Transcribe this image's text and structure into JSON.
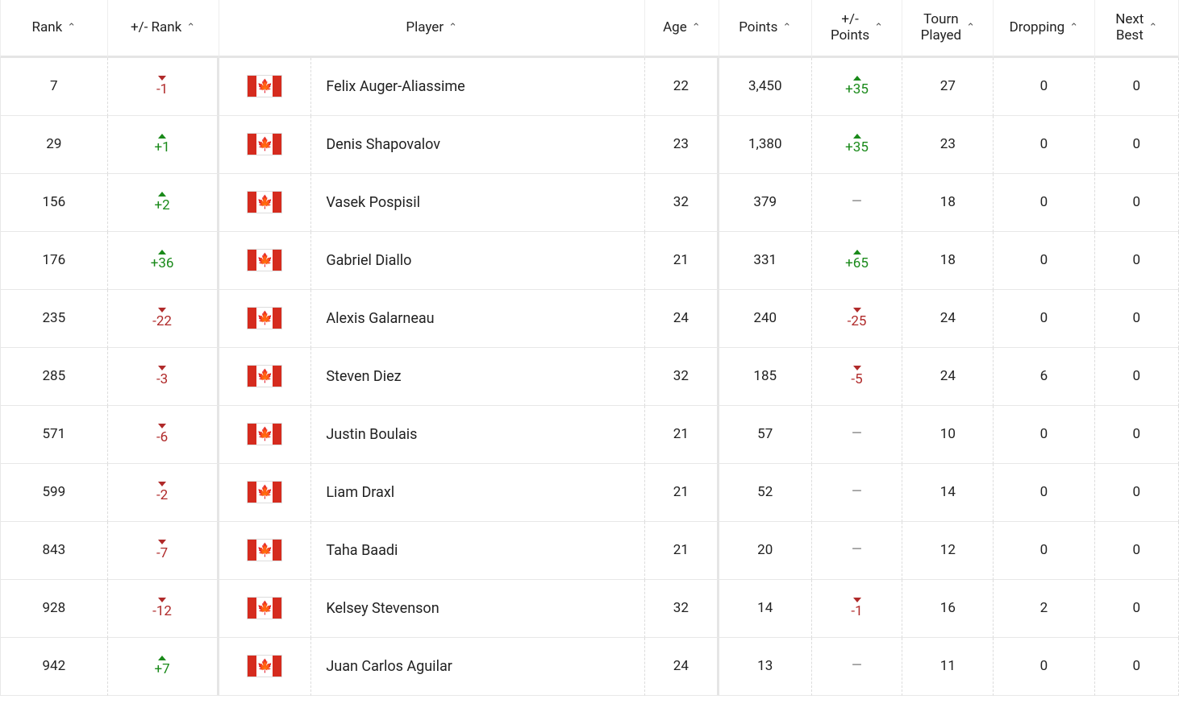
{
  "columns": {
    "rank": "Rank",
    "rank_delta": "+/- Rank",
    "player": "Player",
    "age": "Age",
    "points": "Points",
    "points_delta": "+/-\nPoints",
    "tourn_played": "Tourn\nPlayed",
    "dropping": "Dropping",
    "next_best": "Next\nBest"
  },
  "sort_indicator": "^",
  "flag_country": "ca",
  "colors": {
    "up": "#1a8a1a",
    "down": "#b02a2a",
    "flat": "#999999",
    "row_border": "#e8e8e8",
    "dashed_border": "#dcdcdc",
    "header_border": "#e5e5e5"
  },
  "rows": [
    {
      "rank": "7",
      "rank_delta": {
        "dir": "down",
        "val": "-1"
      },
      "player": "Felix Auger-Aliassime",
      "age": "22",
      "points": "3,450",
      "points_delta": {
        "dir": "up",
        "val": "+35"
      },
      "tourn_played": "27",
      "dropping": "0",
      "next_best": "0"
    },
    {
      "rank": "29",
      "rank_delta": {
        "dir": "up",
        "val": "+1"
      },
      "player": "Denis Shapovalov",
      "age": "23",
      "points": "1,380",
      "points_delta": {
        "dir": "up",
        "val": "+35"
      },
      "tourn_played": "23",
      "dropping": "0",
      "next_best": "0"
    },
    {
      "rank": "156",
      "rank_delta": {
        "dir": "up",
        "val": "+2"
      },
      "player": "Vasek Pospisil",
      "age": "32",
      "points": "379",
      "points_delta": {
        "dir": "flat",
        "val": ""
      },
      "tourn_played": "18",
      "dropping": "0",
      "next_best": "0"
    },
    {
      "rank": "176",
      "rank_delta": {
        "dir": "up",
        "val": "+36"
      },
      "player": "Gabriel Diallo",
      "age": "21",
      "points": "331",
      "points_delta": {
        "dir": "up",
        "val": "+65"
      },
      "tourn_played": "18",
      "dropping": "0",
      "next_best": "0"
    },
    {
      "rank": "235",
      "rank_delta": {
        "dir": "down",
        "val": "-22"
      },
      "player": "Alexis Galarneau",
      "age": "24",
      "points": "240",
      "points_delta": {
        "dir": "down",
        "val": "-25"
      },
      "tourn_played": "24",
      "dropping": "0",
      "next_best": "0"
    },
    {
      "rank": "285",
      "rank_delta": {
        "dir": "down",
        "val": "-3"
      },
      "player": "Steven Diez",
      "age": "32",
      "points": "185",
      "points_delta": {
        "dir": "down",
        "val": "-5"
      },
      "tourn_played": "24",
      "dropping": "6",
      "next_best": "0"
    },
    {
      "rank": "571",
      "rank_delta": {
        "dir": "down",
        "val": "-6"
      },
      "player": "Justin Boulais",
      "age": "21",
      "points": "57",
      "points_delta": {
        "dir": "flat",
        "val": ""
      },
      "tourn_played": "10",
      "dropping": "0",
      "next_best": "0"
    },
    {
      "rank": "599",
      "rank_delta": {
        "dir": "down",
        "val": "-2"
      },
      "player": "Liam Draxl",
      "age": "21",
      "points": "52",
      "points_delta": {
        "dir": "flat",
        "val": ""
      },
      "tourn_played": "14",
      "dropping": "0",
      "next_best": "0"
    },
    {
      "rank": "843",
      "rank_delta": {
        "dir": "down",
        "val": "-7"
      },
      "player": "Taha Baadi",
      "age": "21",
      "points": "20",
      "points_delta": {
        "dir": "flat",
        "val": ""
      },
      "tourn_played": "12",
      "dropping": "0",
      "next_best": "0"
    },
    {
      "rank": "928",
      "rank_delta": {
        "dir": "down",
        "val": "-12"
      },
      "player": "Kelsey Stevenson",
      "age": "32",
      "points": "14",
      "points_delta": {
        "dir": "down",
        "val": "-1"
      },
      "tourn_played": "16",
      "dropping": "2",
      "next_best": "0"
    },
    {
      "rank": "942",
      "rank_delta": {
        "dir": "up",
        "val": "+7"
      },
      "player": "Juan Carlos Aguilar",
      "age": "24",
      "points": "13",
      "points_delta": {
        "dir": "flat",
        "val": ""
      },
      "tourn_played": "11",
      "dropping": "0",
      "next_best": "0"
    }
  ]
}
